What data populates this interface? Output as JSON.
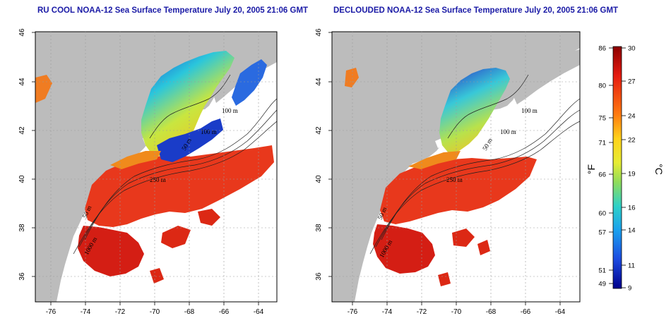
{
  "titles": {
    "left": "RU COOL NOAA-12 Sea Surface Temperature July 20, 2005 21:06 GMT",
    "right": "DECLOUDED NOAA-12 Sea Surface Temperature July 20, 2005 21:06 GMT"
  },
  "axes": {
    "lon_ticks": [
      "-76",
      "-74",
      "-72",
      "-70",
      "-68",
      "-66",
      "-64"
    ],
    "lat_ticks": [
      "46",
      "44",
      "42",
      "40",
      "38",
      "36"
    ]
  },
  "contour_labels": {
    "left": [
      "100 m",
      "100 m",
      "250 m",
      "50 m",
      "50 m",
      "1000 m"
    ],
    "right": [
      "100 m",
      "100 m",
      "250 m",
      "50 m",
      "50 m",
      "1000 m"
    ]
  },
  "colorbar": {
    "fahrenheit_ticks": [
      "86",
      "80",
      "75",
      "71",
      "66",
      "60",
      "57",
      "51",
      "49"
    ],
    "celsius_ticks": [
      "30",
      "27",
      "24",
      "22",
      "19",
      "16",
      "14",
      "11",
      "9"
    ],
    "unit_f": "°F",
    "unit_c": "°C",
    "colors": [
      "#8b0000",
      "#e51a10",
      "#ff7a10",
      "#ffd21a",
      "#e6ec33",
      "#90dc5a",
      "#2ed1c8",
      "#1aa0ee",
      "#1c4ae0",
      "#00008b"
    ]
  },
  "colors": {
    "land": "#bcbcbc",
    "warm": "#e8321c",
    "hot": "#c81414",
    "cool": "#19b8e6",
    "cold": "#1846d2",
    "title": "#1a1aa6"
  }
}
